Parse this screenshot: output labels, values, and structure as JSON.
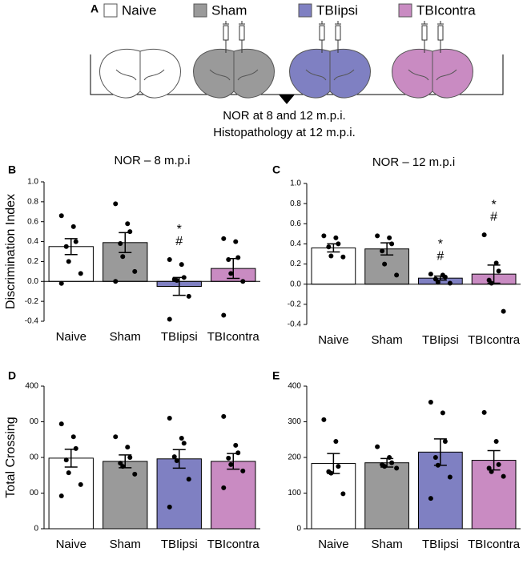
{
  "schematic": {
    "panel_label": "A",
    "legend": [
      "Naive",
      "Sham",
      "TBIipsi",
      "TBIcontra"
    ],
    "legend_colors": [
      "#ffffff",
      "#9a9a9a",
      "#7f80c2",
      "#c98bc2"
    ],
    "notes": [
      "NOR at 8 and 12 m.p.i.",
      "Histopathology at 12 m.p.i."
    ]
  },
  "chart_data": [
    {
      "type": "bar",
      "panel_label": "B",
      "title": "NOR – 8 m.p.i",
      "ylabel": "Discrimination Index",
      "categories": [
        "Naive",
        "Sham",
        "TBIipsi",
        "TBIcontra"
      ],
      "colors": [
        "#ffffff",
        "#9a9a9a",
        "#7f80c2",
        "#c98bc2"
      ],
      "values": [
        0.35,
        0.39,
        -0.05,
        0.13
      ],
      "errors": [
        0.08,
        0.1,
        0.09,
        0.1
      ],
      "points": [
        [
          0.66,
          0.55,
          0.4,
          0.35,
          0.2,
          0.08,
          -0.02
        ],
        [
          0.78,
          0.58,
          0.5,
          0.38,
          0.25,
          0.1,
          0.0
        ],
        [
          0.22,
          0.17,
          0.04,
          0.02,
          0.01,
          -0.15,
          -0.38
        ],
        [
          0.43,
          0.4,
          0.24,
          0.22,
          0.08,
          0.0,
          -0.34
        ]
      ],
      "annotations": [
        null,
        null,
        [
          "*",
          "#"
        ],
        null
      ],
      "ylim": [
        -0.4,
        1.0
      ],
      "yticks": [
        -0.4,
        -0.2,
        {
          "value": 0,
          "label": "0.0"
        },
        0.2,
        0.4,
        0.6,
        0.8,
        {
          "value": 1,
          "label": "1.0"
        }
      ]
    },
    {
      "type": "bar",
      "panel_label": "C",
      "title": "NOR – 12 m.p.i",
      "categories": [
        "Naive",
        "Sham",
        "TBIipsi",
        "TBIcontra"
      ],
      "colors": [
        "#ffffff",
        "#9a9a9a",
        "#7f80c2",
        "#c98bc2"
      ],
      "values": [
        0.36,
        0.35,
        0.06,
        0.1
      ],
      "errors": [
        0.04,
        0.06,
        0.02,
        0.09
      ],
      "points": [
        [
          0.48,
          0.46,
          0.4,
          0.37,
          0.28,
          0.27
        ],
        [
          0.48,
          0.46,
          0.4,
          0.33,
          0.2,
          0.09
        ],
        [
          0.1,
          0.09,
          0.07,
          0.05,
          0.02,
          0.01
        ],
        [
          0.49,
          0.21,
          0.13,
          0.04,
          0.01,
          -0.27
        ]
      ],
      "annotations": [
        null,
        null,
        [
          "*",
          "#"
        ],
        [
          "*",
          "#"
        ]
      ],
      "ylim": [
        -0.4,
        1.0
      ],
      "yticks": [
        -0.4,
        -0.2,
        {
          "value": 0,
          "label": "0.0"
        },
        0.2,
        0.4,
        0.6,
        0.8,
        {
          "value": 1,
          "label": "1.0"
        }
      ]
    },
    {
      "type": "bar",
      "panel_label": "D",
      "ylabel": "Total Crossing",
      "categories": [
        "Naive",
        "Sham",
        "TBIipsi",
        "TBIcontra"
      ],
      "colors": [
        "#ffffff",
        "#9a9a9a",
        "#7f80c2",
        "#c98bc2"
      ],
      "values": [
        198,
        189,
        196,
        189
      ],
      "errors": [
        25,
        18,
        26,
        22
      ],
      "points": [
        [
          294,
          258,
          225,
          193,
          157,
          124,
          92
        ],
        [
          258,
          229,
          200,
          184,
          175,
          153
        ],
        [
          310,
          254,
          240,
          202,
          191,
          139,
          61
        ],
        [
          315,
          234,
          213,
          198,
          180,
          162,
          115
        ]
      ],
      "ylim": [
        0,
        400
      ],
      "yticks": [
        0,
        {
          "value": 100,
          "label": "00"
        },
        {
          "value": 200,
          "label": "00"
        },
        {
          "value": 300,
          "label": "00"
        },
        400
      ]
    },
    {
      "type": "bar",
      "panel_label": "E",
      "categories": [
        "Naive",
        "Sham",
        "TBIipsi",
        "TBIcontra"
      ],
      "colors": [
        "#ffffff",
        "#9a9a9a",
        "#7f80c2",
        "#c98bc2"
      ],
      "values": [
        183,
        185,
        215,
        192
      ],
      "errors": [
        28,
        12,
        37,
        27
      ],
      "points": [
        [
          306,
          245,
          175,
          160,
          156,
          98
        ],
        [
          230,
          200,
          185,
          180,
          175,
          170
        ],
        [
          355,
          325,
          245,
          200,
          178,
          145,
          85
        ],
        [
          326,
          245,
          180,
          170,
          160,
          147
        ]
      ],
      "ylim": [
        0,
        400
      ],
      "yticks": [
        0,
        100,
        200,
        300,
        400
      ]
    }
  ]
}
